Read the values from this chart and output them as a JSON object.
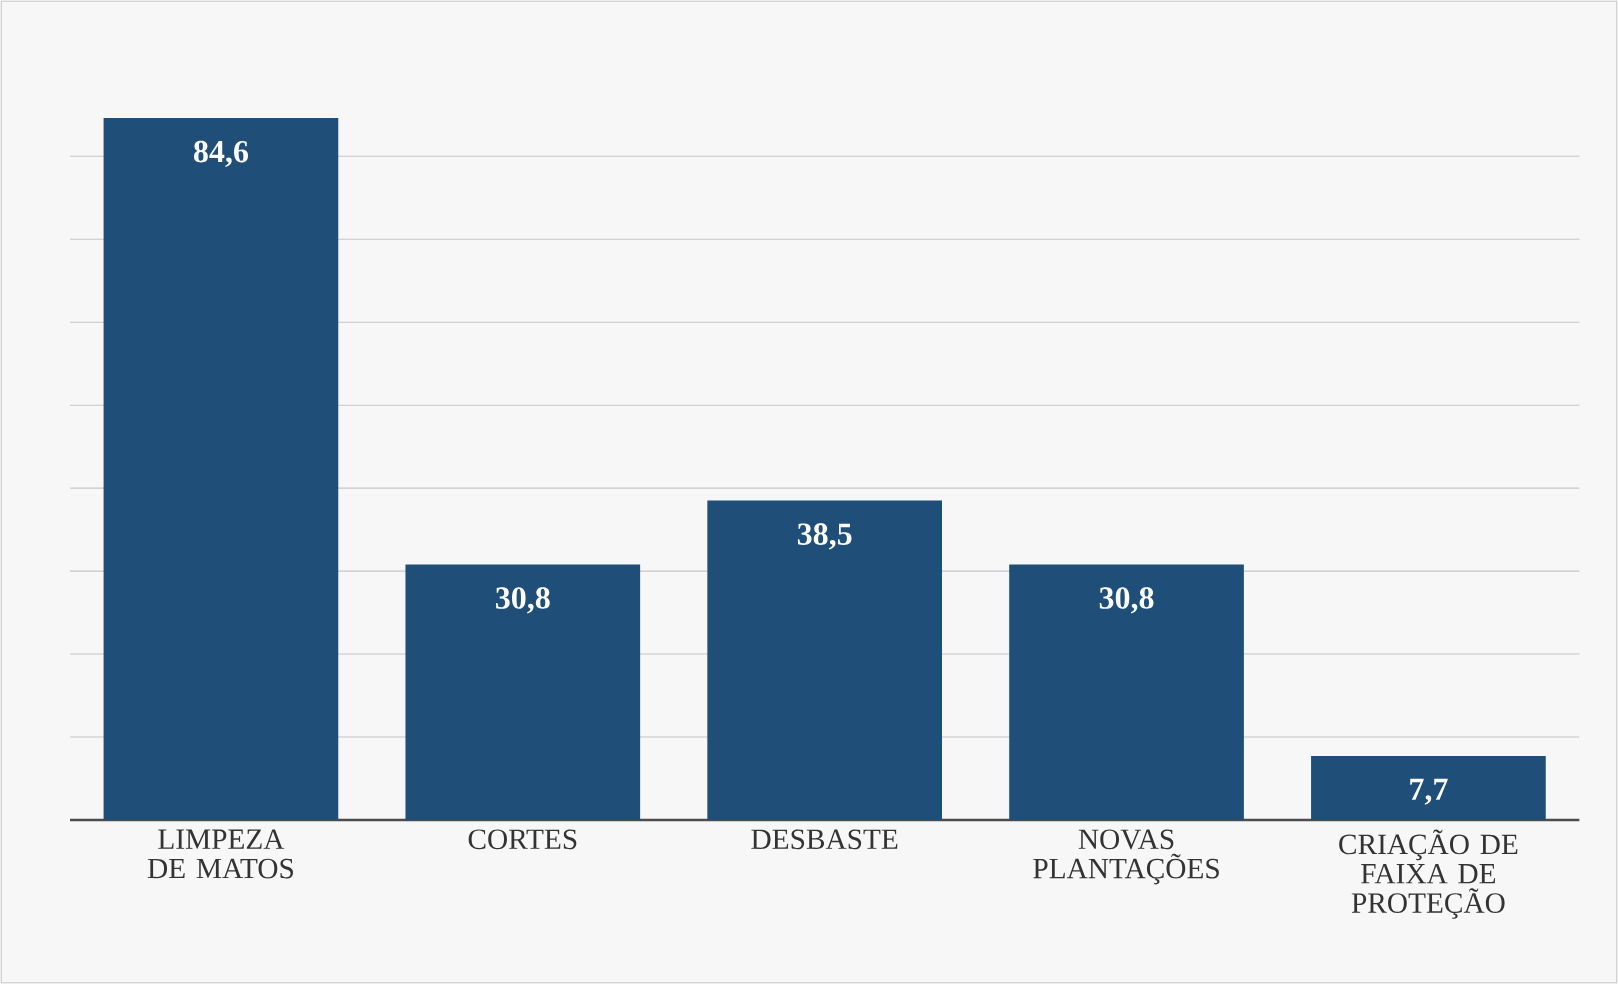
{
  "chart_data": {
    "type": "bar",
    "categories": [
      "LIMPEZA DE MATOS",
      "CORTES",
      "DESBASTE",
      "NOVAS PLANTAÇÕES",
      "CRIAÇÃO DE FAIXA DE PROTEÇÃO"
    ],
    "values": [
      84.6,
      30.8,
      38.5,
      30.8,
      7.7
    ],
    "value_labels": [
      "84,6",
      "30,8",
      "38,5",
      "30,8",
      "7,7"
    ],
    "color": "#1f4e79",
    "grid": "y",
    "tick_labels": "x"
  }
}
